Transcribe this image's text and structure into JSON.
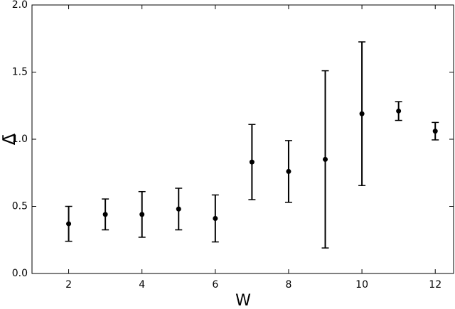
{
  "chart_data": {
    "type": "errorbar",
    "x_label": "W",
    "y_label": "Δ̄",
    "x": [
      2,
      3,
      4,
      5,
      6,
      7,
      8,
      9,
      10,
      11,
      12
    ],
    "series": [
      {
        "color": "#000000",
        "values": [
          0.37,
          0.44,
          0.44,
          0.48,
          0.41,
          0.83,
          0.76,
          0.85,
          1.19,
          1.21,
          1.06
        ],
        "errors": [
          0.13,
          0.115,
          0.17,
          0.155,
          0.175,
          0.28,
          0.23,
          0.66,
          0.535,
          0.07,
          0.065
        ]
      }
    ],
    "xlim": [
      1,
      12.5
    ],
    "ylim": [
      0,
      2
    ],
    "xticks": [
      2,
      4,
      6,
      8,
      10,
      12
    ],
    "yticks": [
      {
        "value": 0,
        "label": "0.0"
      },
      0.5,
      {
        "value": 1,
        "label": "1.0"
      },
      1.5,
      {
        "value": 2,
        "label": "2.0"
      }
    ]
  }
}
